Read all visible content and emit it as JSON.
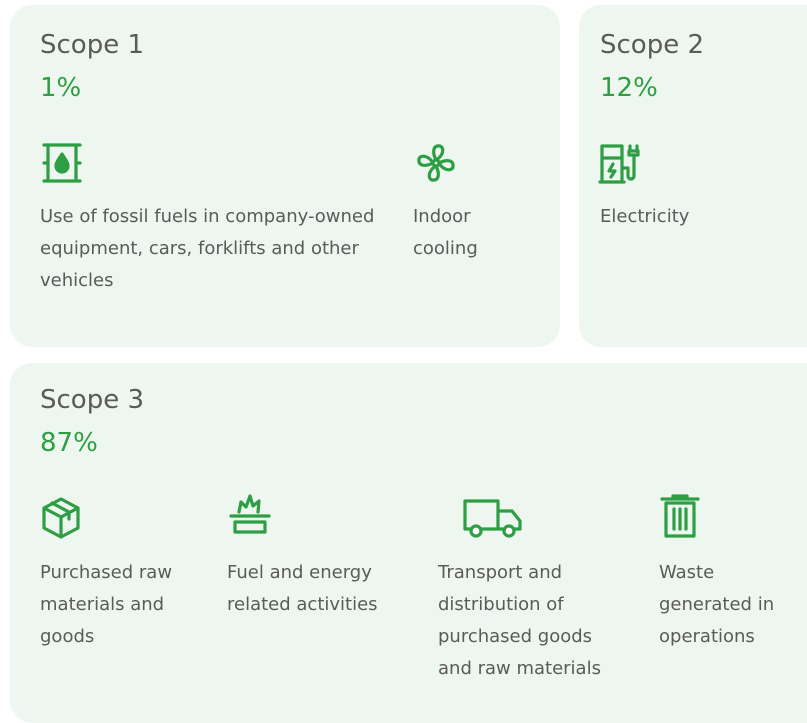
{
  "scopes": [
    {
      "title": "Scope 1",
      "percent": "1%",
      "items": [
        {
          "label": "Use of fossil fuels in company-owned equipment, cars, forklifts and other vehicles"
        },
        {
          "label": "Indoor cooling"
        }
      ]
    },
    {
      "title": "Scope 2",
      "percent": "12%",
      "items": [
        {
          "label": "Electricity"
        }
      ]
    },
    {
      "title": "Scope 3",
      "percent": "87%",
      "items": [
        {
          "label": "Purchased raw materials and goods"
        },
        {
          "label": "Fuel and energy related activities"
        },
        {
          "label": "Transport and distribution of purchased goods and raw materials"
        },
        {
          "label": "Waste generated in operations"
        }
      ]
    }
  ]
}
